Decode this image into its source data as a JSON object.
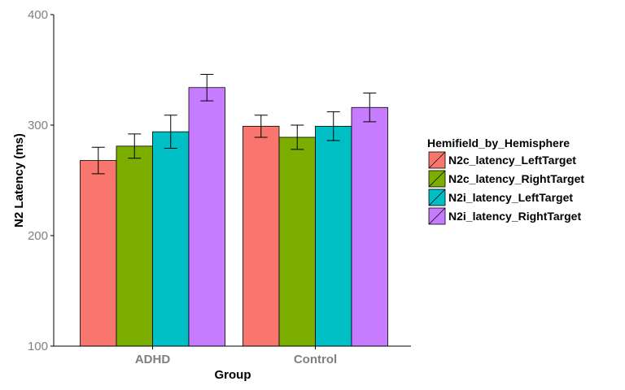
{
  "chart_data": {
    "type": "bar",
    "xlabel": "Group",
    "ylabel": "N2 Latency (ms)",
    "ylim": [
      100,
      400
    ],
    "yticks": [
      100,
      200,
      300,
      400
    ],
    "categories": [
      "ADHD",
      "Control"
    ],
    "legend_title": "Hemifield_by_Hemisphere",
    "legend_position": "right",
    "grid": false,
    "series": [
      {
        "name": "N2c_latency_LeftTarget",
        "color": "#F8766D",
        "values": [
          268,
          299
        ],
        "error": [
          12,
          10
        ]
      },
      {
        "name": "N2c_latency_RightTarget",
        "color": "#7CAE00",
        "values": [
          281,
          289
        ],
        "error": [
          11,
          11
        ]
      },
      {
        "name": "N2i_latency_LeftTarget",
        "color": "#00BFC4",
        "values": [
          294,
          299
        ],
        "error": [
          15,
          13
        ]
      },
      {
        "name": "N2i_latency_RightTarget",
        "color": "#C77CFF",
        "values": [
          334,
          316
        ],
        "error": [
          12,
          13
        ]
      }
    ]
  }
}
